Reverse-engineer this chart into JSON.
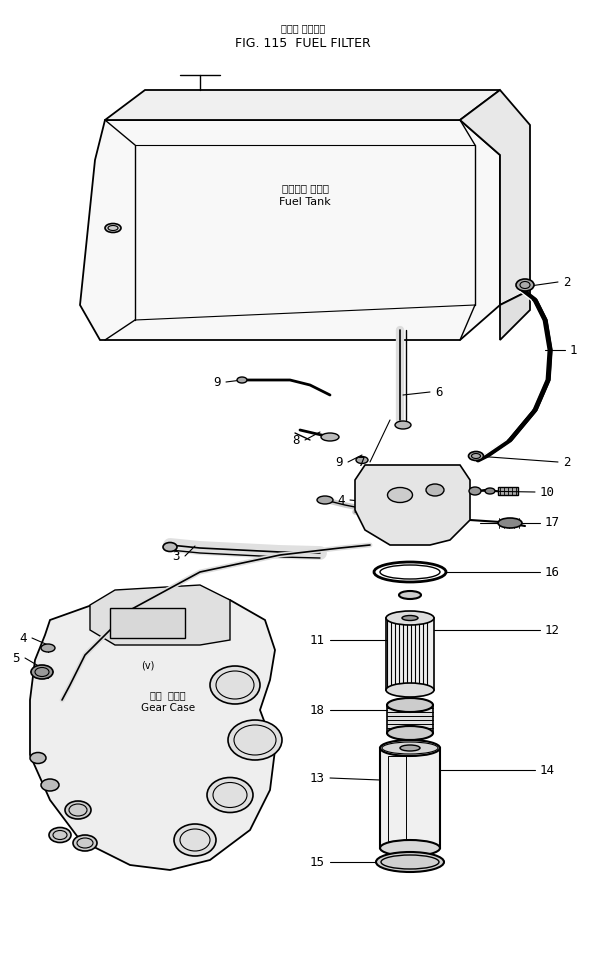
{
  "title_jp": "フェル フィルタ",
  "title_en": "FIG. 115  FUEL FILTER",
  "bg_color": "#ffffff",
  "line_color": "#000000",
  "fuel_tank_label_jp": "フェルル タンク",
  "fuel_tank_label_en": "Fuel Tank",
  "gear_case_label_jp": "ギヤ  ケース",
  "gear_case_label_en": "Gear Case",
  "figsize": [
    6.06,
    9.56
  ],
  "dpi": 100
}
